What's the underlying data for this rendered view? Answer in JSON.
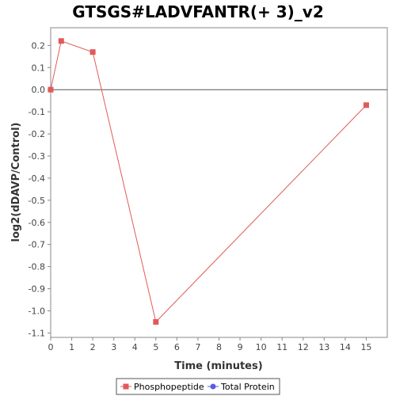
{
  "chart_data": {
    "type": "line",
    "title": "GTSGS#LADVFANTR(+ 3)_v2",
    "xlabel": "Time (minutes)",
    "ylabel": "log2(dDAVP/Control)",
    "xlim": [
      0,
      16
    ],
    "ylim": [
      -1.12,
      0.28
    ],
    "x_ticks": [
      0,
      1,
      2,
      3,
      4,
      5,
      6,
      7,
      8,
      9,
      10,
      11,
      12,
      13,
      14,
      15
    ],
    "y_ticks": [
      0.2,
      0.1,
      0.0,
      -0.1,
      -0.2,
      -0.3,
      -0.4,
      -0.5,
      -0.6,
      -0.7,
      -0.8,
      -0.9,
      -1.0,
      -1.1
    ],
    "y_tick_labels": [
      "0.2",
      "0.1",
      "0.0",
      "-0.1",
      "-0.2",
      "-0.3",
      "-0.4",
      "-0.5",
      "-0.6",
      "-0.7",
      "-0.8",
      "-0.9",
      "-1.0",
      "-1.1"
    ],
    "zero_line": true,
    "grid": false,
    "legend_position": "bottom",
    "series": [
      {
        "name": "Phosphopeptide",
        "color": "#e05a5a",
        "marker": "square",
        "x": [
          0,
          0.5,
          2,
          5,
          15
        ],
        "y": [
          0.0,
          0.22,
          0.17,
          -1.05,
          -0.07
        ]
      },
      {
        "name": "Total Protein",
        "color": "#5a5ae0",
        "marker": "circle",
        "x": [],
        "y": []
      }
    ]
  }
}
